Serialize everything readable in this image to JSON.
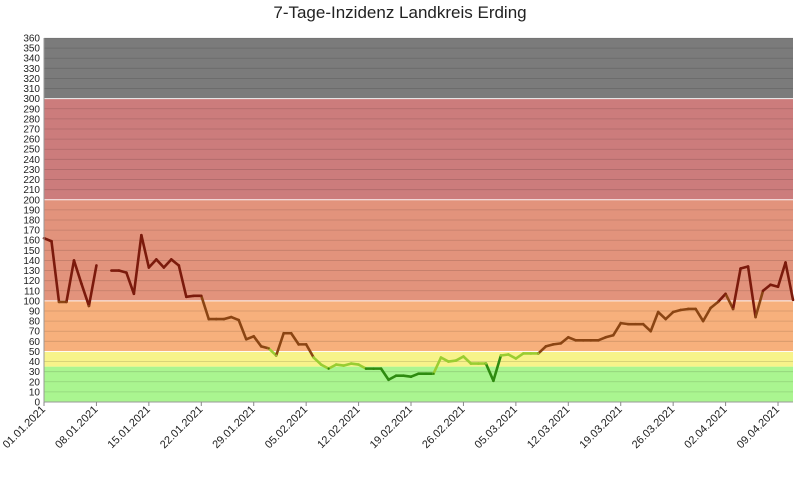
{
  "chart_data": {
    "type": "line",
    "title": "7-Tage-Inzidenz Landkreis Erding",
    "xlabel": "",
    "ylabel": "",
    "ylim": [
      0,
      360
    ],
    "ytick_step": 10,
    "grid": true,
    "x_range": [
      "01.01.2021",
      "11.04.2021"
    ],
    "x_tick_labels": [
      "01.01.2021",
      "08.01.2021",
      "15.01.2021",
      "22.01.2021",
      "29.01.2021",
      "05.02.2021",
      "12.02.2021",
      "19.02.2021",
      "26.02.2021",
      "05.03.2021",
      "12.03.2021",
      "19.03.2021",
      "26.03.2021",
      "02.04.2021",
      "09.04.2021"
    ],
    "bands": [
      {
        "from": 0,
        "to": 35,
        "color": "#aaf590"
      },
      {
        "from": 35,
        "to": 50,
        "color": "#f7f38a"
      },
      {
        "from": 50,
        "to": 100,
        "color": "#f7b07c"
      },
      {
        "from": 100,
        "to": 200,
        "color": "#e2937c"
      },
      {
        "from": 200,
        "to": 300,
        "color": "#cc7c7c"
      },
      {
        "from": 300,
        "to": 360,
        "color": "#7b7b7b"
      }
    ],
    "line_color_thresholds": [
      {
        "below": 35,
        "color": "#2e8b10"
      },
      {
        "below": 50,
        "color": "#9acd32"
      },
      {
        "below": 100,
        "color": "#8b4513"
      },
      {
        "below": 99999,
        "color": "#7b1a0c"
      }
    ],
    "series": [
      {
        "x": [
          "01.01.2021",
          "02.01.2021",
          "03.01.2021",
          "04.01.2021",
          "05.01.2021",
          "06.01.2021",
          "07.01.2021",
          "08.01.2021",
          null,
          "10.01.2021",
          "11.01.2021",
          "12.01.2021",
          "13.01.2021",
          "14.01.2021",
          "15.01.2021",
          "16.01.2021",
          "17.01.2021",
          "18.01.2021",
          "19.01.2021",
          "20.01.2021",
          "21.01.2021",
          "22.01.2021",
          "23.01.2021",
          "24.01.2021",
          "25.01.2021",
          "26.01.2021",
          "27.01.2021",
          "28.01.2021",
          "29.01.2021",
          "30.01.2021",
          "31.01.2021",
          "01.02.2021",
          "02.02.2021",
          "03.02.2021",
          "04.02.2021",
          "05.02.2021",
          "06.02.2021",
          "07.02.2021",
          "08.02.2021",
          "09.02.2021",
          "10.02.2021",
          "11.02.2021",
          "12.02.2021",
          "13.02.2021",
          "14.02.2021",
          "15.02.2021",
          "16.02.2021",
          "17.02.2021",
          "18.02.2021",
          "19.02.2021",
          "20.02.2021",
          "21.02.2021",
          "22.02.2021",
          "23.02.2021",
          "24.02.2021",
          "25.02.2021",
          "26.02.2021",
          "27.02.2021",
          "28.02.2021",
          "01.03.2021",
          "02.03.2021",
          "03.03.2021",
          "04.03.2021",
          "05.03.2021",
          "06.03.2021",
          "07.03.2021",
          "08.03.2021",
          "09.03.2021",
          "10.03.2021",
          "11.03.2021",
          "12.03.2021",
          "13.03.2021",
          "14.03.2021",
          "15.03.2021",
          "16.03.2021",
          "17.03.2021",
          "18.03.2021",
          "19.03.2021",
          "20.03.2021",
          "21.03.2021",
          "22.03.2021",
          "23.03.2021",
          "24.03.2021",
          "25.03.2021",
          "26.03.2021",
          "27.03.2021",
          "28.03.2021",
          "29.03.2021",
          "30.03.2021",
          "31.03.2021",
          "01.04.2021",
          "02.04.2021",
          "03.04.2021",
          "04.04.2021",
          "05.04.2021",
          "06.04.2021",
          "07.04.2021",
          "08.04.2021",
          "09.04.2021",
          "10.04.2021",
          "11.04.2021"
        ],
        "values": [
          162,
          159,
          99,
          99,
          140,
          117,
          95,
          135,
          null,
          130,
          130,
          128,
          107,
          165,
          133,
          141,
          133,
          141,
          135,
          104,
          105,
          105,
          82,
          82,
          82,
          84,
          81,
          62,
          65,
          55,
          53,
          46,
          68,
          68,
          57,
          57,
          44,
          37,
          33,
          37,
          36,
          38,
          37,
          33,
          33,
          33,
          22,
          26,
          26,
          25,
          28,
          28,
          28,
          44,
          40,
          41,
          45,
          38,
          38,
          38,
          21,
          46,
          47,
          43,
          48,
          48,
          48,
          55,
          57,
          58,
          64,
          61,
          61,
          61,
          61,
          64,
          66,
          78,
          77,
          77,
          77,
          70,
          89,
          82,
          89,
          91,
          92,
          92,
          80,
          93,
          99,
          107,
          92,
          132,
          134,
          84,
          110,
          116,
          114,
          138,
          101
        ]
      }
    ]
  }
}
